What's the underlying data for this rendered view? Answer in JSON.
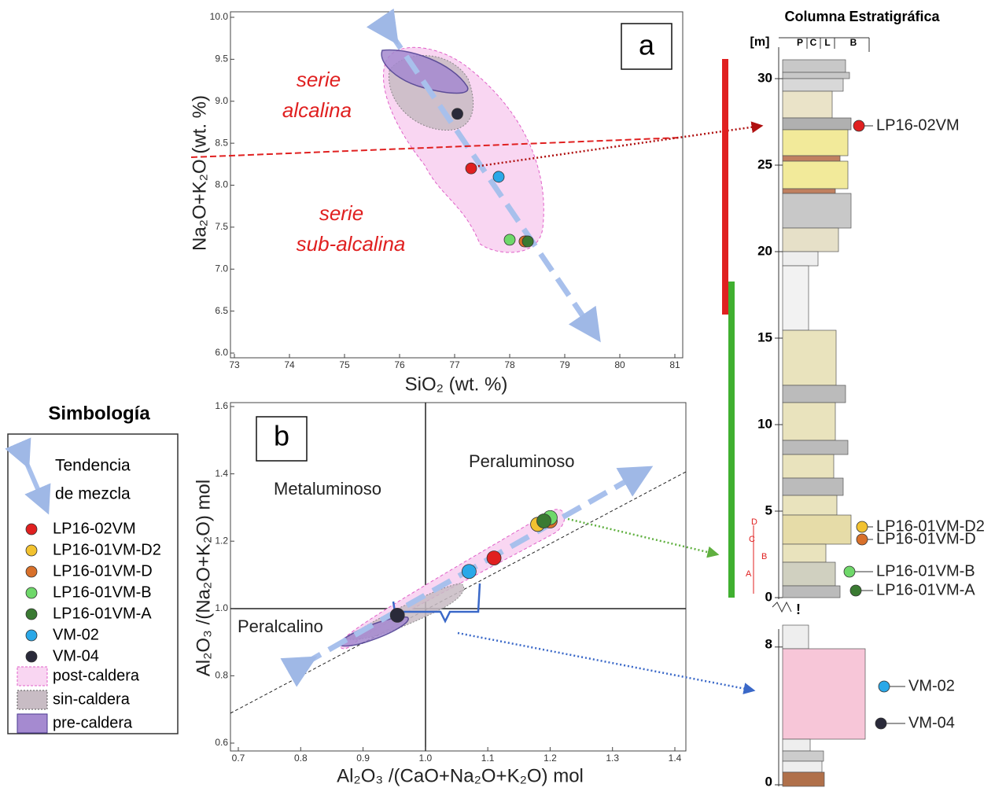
{
  "chart_data": [
    {
      "type": "scatter",
      "x_label": "SiO₂ (wt. %)",
      "y_label": "Na₂O+K₂O (wt. %)",
      "panel": "a",
      "annotations": [
        "serie",
        "alcalina",
        "serie",
        "sub-alcalina"
      ],
      "xlim": [
        73,
        81
      ],
      "xticks": [
        73,
        74,
        75,
        76,
        77,
        78,
        79,
        80,
        81
      ],
      "ylim": [
        6,
        10
      ],
      "yticks": [
        {
          "value": 6,
          "label": "6.0"
        },
        6.5,
        {
          "value": 7,
          "label": "7.0"
        },
        7.5,
        {
          "value": 8,
          "label": "8.0"
        },
        8.5,
        {
          "value": 9,
          "label": "9.0"
        },
        9.5,
        {
          "value": 10,
          "label": "10.0"
        }
      ],
      "series": [
        {
          "name": "LP16-02VM",
          "color": "#e02020",
          "x": [
            77.3
          ],
          "values": [
            8.2
          ]
        },
        {
          "name": "LP16-01VM-D2",
          "color": "#f2c230",
          "x": [
            78.3
          ],
          "values": [
            7.33
          ]
        },
        {
          "name": "LP16-01VM-D",
          "color": "#d8702a",
          "x": [
            78.27
          ],
          "values": [
            7.33
          ]
        },
        {
          "name": "LP16-01VM-B",
          "color": "#6fd86a",
          "x": [
            78.0
          ],
          "values": [
            7.35
          ]
        },
        {
          "name": "LP16-01VM-A",
          "color": "#3a7a32",
          "x": [
            78.33
          ],
          "values": [
            7.33
          ]
        },
        {
          "name": "VM-02",
          "color": "#2aa8e8",
          "x": [
            77.8
          ],
          "values": [
            8.1
          ]
        },
        {
          "name": "VM-04",
          "color": "#2a2a3a",
          "x": [
            77.05
          ],
          "values": [
            8.85
          ]
        }
      ]
    },
    {
      "type": "scatter",
      "x_label": "Al₂O₃ /(CaO+Na₂O+K₂O)  mol",
      "y_label": "Al₂O₃ /(Na₂O+K₂O)  mol",
      "panel": "b",
      "annotations": [
        "Metaluminoso",
        "Peraluminoso",
        "Peralcalino"
      ],
      "xlim": [
        0.7,
        1.4
      ],
      "xticks": [
        0.7,
        0.8,
        0.9,
        {
          "value": 1,
          "label": "1.0"
        },
        1.1,
        1.2,
        1.3,
        1.4
      ],
      "ylim": [
        0.6,
        1.6
      ],
      "yticks": [
        0.6,
        0.8,
        {
          "value": 1,
          "label": "1.0"
        },
        1.2,
        1.4,
        1.6
      ],
      "series": [
        {
          "color": "#e02020",
          "x": [
            1.11
          ],
          "values": [
            1.15
          ]
        },
        {
          "color": "#f2c230",
          "x": [
            1.18
          ],
          "values": [
            1.25
          ]
        },
        {
          "color": "#d8702a",
          "x": [
            1.2
          ],
          "values": [
            1.26
          ]
        },
        {
          "color": "#6fd86a",
          "x": [
            1.2
          ],
          "values": [
            1.27
          ]
        },
        {
          "color": "#3a7a32",
          "x": [
            1.19
          ],
          "values": [
            1.26
          ]
        },
        {
          "color": "#2aa8e8",
          "x": [
            1.07
          ],
          "values": [
            1.11
          ]
        },
        {
          "color": "#2a2a3a",
          "x": [
            0.955
          ],
          "values": [
            0.98
          ]
        }
      ]
    }
  ],
  "legend": {
    "title": "Simbología",
    "trend": [
      "Tendencia",
      "de mezcla"
    ],
    "fields": [
      "post-caldera",
      "sin-caldera",
      "pre-caldera"
    ]
  },
  "column": {
    "title": "Columna Estratigráfica",
    "unit": "[m]",
    "headers": [
      "P",
      "C",
      "L",
      "B"
    ],
    "ticks": [
      0,
      5,
      10,
      15,
      20,
      25,
      30
    ],
    "lower_ticks": [
      0,
      8
    ],
    "intervals": [
      "D",
      "C",
      "B",
      "A"
    ],
    "break_mark": "!",
    "samples": [
      "LP16-02VM",
      "LP16-01VM-D2",
      "LP16-01VM-D",
      "LP16-01VM-B",
      "LP16-01VM-A",
      "VM-02",
      "VM-04"
    ]
  }
}
